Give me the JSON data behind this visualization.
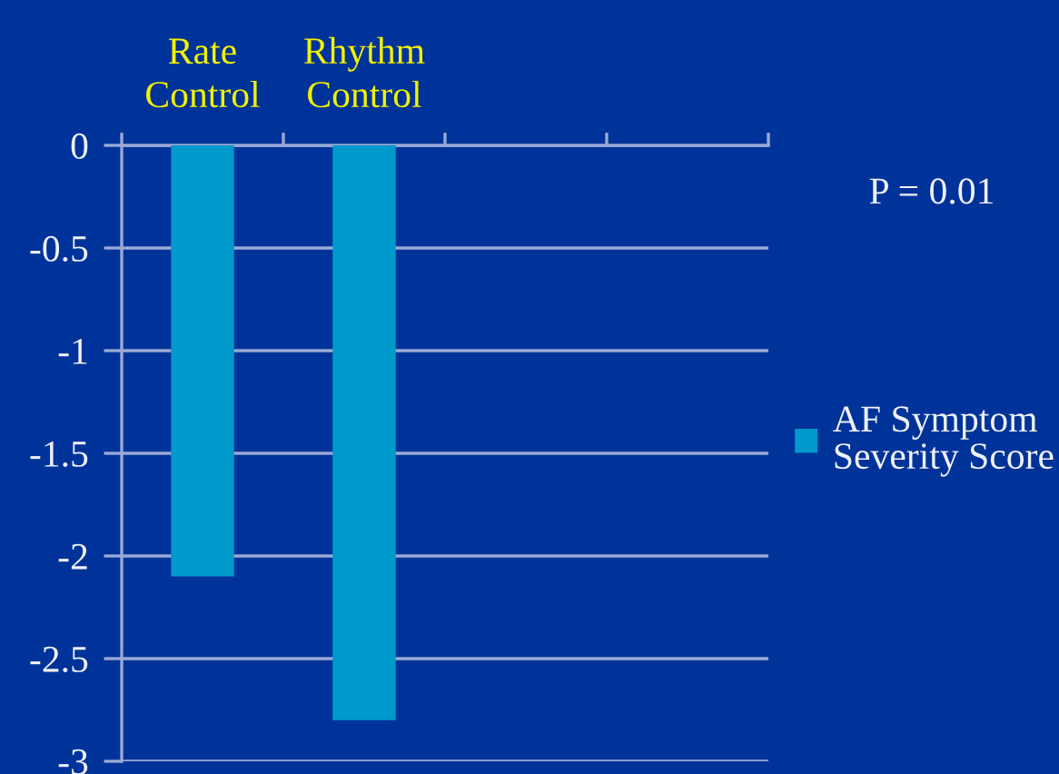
{
  "chart_data": {
    "type": "bar",
    "categories": [
      "Rate\nControl",
      "Rhythm\nControl",
      null,
      null
    ],
    "series": [
      {
        "name": "AF Symptom\nSeverity Score",
        "color": "#0099cc",
        "values": [
          -2.1,
          -2.8,
          null,
          null
        ]
      }
    ],
    "ylim": [
      -3,
      0
    ],
    "yticks": [
      0,
      -0.5,
      -1,
      -1.5,
      -2,
      -2.5,
      -3
    ],
    "grid": "y",
    "legend": "right",
    "annotations": [
      "P = 0.01"
    ]
  }
}
